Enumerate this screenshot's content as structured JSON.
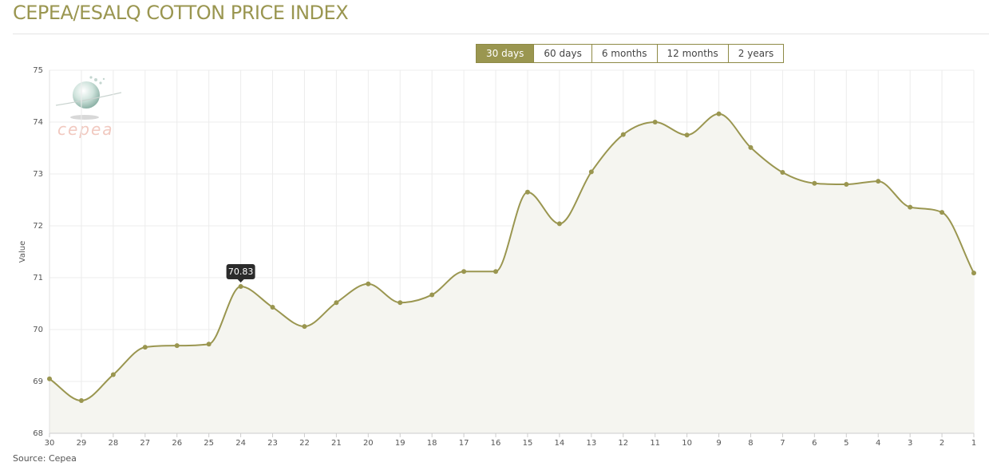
{
  "page": {
    "title": "CEPEA/ESALQ COTTON PRICE INDEX",
    "source": "Source: Cepea"
  },
  "range_buttons": [
    {
      "label": "30 days",
      "active": true
    },
    {
      "label": "60 days",
      "active": false
    },
    {
      "label": "6 months",
      "active": false
    },
    {
      "label": "12 months",
      "active": false
    },
    {
      "label": "2 years",
      "active": false
    }
  ],
  "logo": {
    "text": "cepea",
    "icon": "globe-logo-icon"
  },
  "colors": {
    "line": "#9a9650",
    "area": "#f5f5f0",
    "grid": "#ececec",
    "tooltip_bg": "#2b2b2b"
  },
  "chart_data": {
    "type": "area",
    "x": [
      "30",
      "29",
      "28",
      "27",
      "26",
      "25",
      "24",
      "23",
      "22",
      "21",
      "20",
      "19",
      "18",
      "17",
      "16",
      "15",
      "14",
      "13",
      "12",
      "11",
      "10",
      "9",
      "8",
      "7",
      "6",
      "5",
      "4",
      "3",
      "2",
      "1"
    ],
    "values": [
      69.05,
      68.63,
      69.13,
      69.66,
      69.69,
      69.72,
      70.83,
      70.43,
      70.06,
      70.52,
      70.88,
      70.52,
      70.67,
      71.12,
      71.12,
      72.65,
      72.04,
      73.04,
      73.76,
      74.0,
      73.75,
      74.16,
      73.51,
      73.03,
      72.82,
      72.8,
      72.86,
      72.36,
      72.26,
      71.09
    ],
    "ylabel": "Value",
    "xlabel": "",
    "ylim": [
      68,
      75
    ],
    "yticks": [
      68,
      69,
      70,
      71,
      72,
      73,
      74,
      75
    ],
    "grid": true,
    "tooltip": {
      "index": 6,
      "text": "70.83"
    }
  }
}
